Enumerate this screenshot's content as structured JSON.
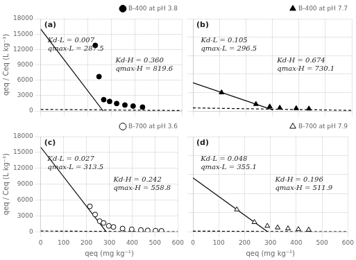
{
  "chart_data": [
    {
      "type": "scatter",
      "title": "(a)",
      "legend": "upper right",
      "tick_labels": "y",
      "ylabel": "qeq / Ceq (L kg⁻¹)",
      "series": [
        {
          "name": "B-400 at pH 3.8",
          "type": "scatter",
          "marker": "filled-circle",
          "color": "#000000",
          "x": [
            232,
            248,
            268,
            293,
            323,
            358,
            393,
            433
          ],
          "values": [
            12800,
            6700,
            2200,
            1850,
            1450,
            1150,
            950,
            750
          ]
        },
        {
          "type": "line",
          "line_style": "solid",
          "color": "#000000",
          "x": [
            0,
            265.574
          ],
          "values": [
            16000,
            0
          ]
        },
        {
          "type": "line",
          "line_style": "dashed",
          "color": "#000000",
          "x": [
            0,
            600
          ],
          "values": [
            295.056,
            79.056
          ]
        }
      ],
      "annotations": [
        "Kd-L = 0.007\nqmax-L = 287.5",
        "Kd-H = 0.360\nqmax-H = 819.6"
      ],
      "xlim": [
        0,
        600
      ],
      "ylim": [
        0,
        18000
      ],
      "xticks": [
        0,
        100,
        200,
        300,
        400,
        500,
        600
      ],
      "yticks": [
        0,
        3000,
        6000,
        9000,
        12000,
        15000,
        18000
      ]
    },
    {
      "type": "scatter",
      "title": "(b)",
      "legend": "upper right",
      "tick_labels": false,
      "series": [
        {
          "name": "B-400 at pH 7.7",
          "type": "scatter",
          "marker": "filled-triangle",
          "color": "#000000",
          "x": [
            108,
            238,
            290,
            328,
            390,
            438
          ],
          "values": [
            3000,
            1100,
            700,
            500,
            420,
            360
          ]
        },
        {
          "type": "line",
          "line_style": "solid",
          "color": "#000000",
          "x": [
            0,
            302.43
          ],
          "values": [
            4578.462,
            158.331
          ]
        },
        {
          "type": "line",
          "line_style": "dashed",
          "color": "#000000",
          "x": [
            0,
            600
          ],
          "values": [
            492.0874,
            87.6874
          ]
        }
      ],
      "annotations": [
        "Kd-L = 0.105\nqmax-L = 296.5",
        "Kd-H = 0.674\nqmax-H = 730.1"
      ],
      "xlim": [
        0,
        600
      ],
      "ylim": [
        0,
        15000
      ],
      "xticks": [
        0,
        100,
        200,
        300,
        400,
        500,
        600
      ],
      "yticks": [
        0,
        3000,
        6000,
        9000,
        12000,
        15000
      ]
    },
    {
      "type": "scatter",
      "title": "(c)",
      "legend": "upper right",
      "xlabel": "qeq (mg kg⁻¹)",
      "ylabel": "qeq / Ceq (L kg⁻¹)",
      "series": [
        {
          "name": "B-700 at pH 3.6",
          "type": "scatter",
          "marker": "open-circle",
          "color": "#000000",
          "x": [
            215,
            238,
            258,
            275,
            298,
            318,
            358,
            398,
            438,
            468,
            502,
            528
          ],
          "values": [
            4800,
            3250,
            2000,
            1650,
            1100,
            900,
            600,
            450,
            320,
            255,
            200,
            165
          ]
        },
        {
          "type": "line",
          "line_style": "solid",
          "color": "#000000",
          "x": [
            0,
            286.226
          ],
          "values": [
            16000,
            0
          ]
        },
        {
          "type": "line",
          "line_style": "dashed",
          "color": "#000000",
          "x": [
            0,
            558.8,
            600
          ],
          "values": [
            135.2296,
            0,
            0
          ]
        }
      ],
      "annotations": [
        "Kd-L = 0.027\nqmax-L = 313.5",
        "Kd-H = 0.242\nqmax-H = 558.8"
      ],
      "xlim": [
        0,
        600
      ],
      "ylim": [
        0,
        18000
      ],
      "xticks": [
        0,
        100,
        200,
        300,
        400,
        500,
        600
      ],
      "yticks": [
        0,
        3000,
        6000,
        9000,
        12000,
        15000,
        18000
      ]
    },
    {
      "type": "scatter",
      "title": "(d)",
      "legend": "upper right",
      "tick_labels": "x",
      "xlabel": "qeq (mg kg⁻¹)",
      "series": [
        {
          "name": "B-700 at pH 7.9",
          "type": "scatter",
          "marker": "open-triangle",
          "color": "#000000",
          "x": [
            170,
            238,
            288,
            328,
            368,
            408,
            448
          ],
          "values": [
            3500,
            1500,
            900,
            650,
            500,
            380,
            300
          ]
        },
        {
          "type": "line",
          "line_style": "solid",
          "color": "#000000",
          "x": [
            0,
            289
          ],
          "values": [
            8500,
            0
          ]
        },
        {
          "type": "line",
          "line_style": "dashed",
          "color": "#000000",
          "x": [
            0,
            511.9,
            600
          ],
          "values": [
            100.3324,
            0,
            0
          ]
        }
      ],
      "annotations": [
        "Kd-L = 0.048\nqmax-L = 355.1",
        "Kd-H = 0.196\nqmax-H = 511.9"
      ],
      "xlim": [
        0,
        600
      ],
      "ylim": [
        0,
        15000
      ],
      "xticks": [
        0,
        100,
        200,
        300,
        400,
        500,
        600
      ],
      "yticks": [
        0,
        3000,
        6000,
        9000,
        12000,
        15000
      ]
    }
  ]
}
